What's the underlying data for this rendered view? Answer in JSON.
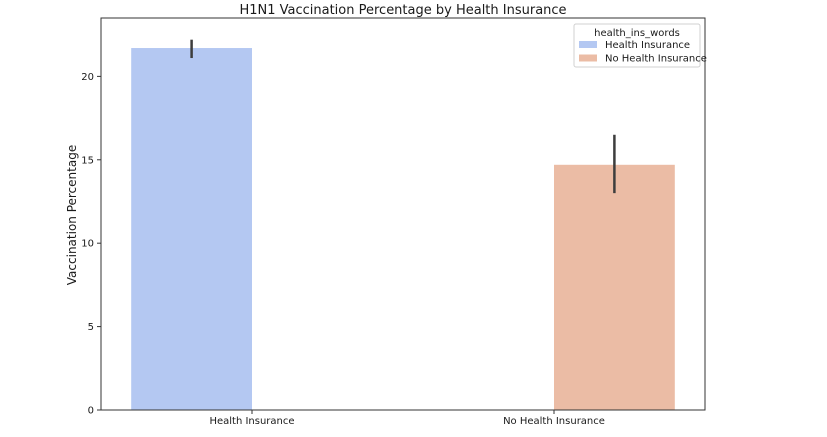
{
  "chart_data": {
    "type": "bar",
    "title": "H1N1 Vaccination Percentage by Health Insurance",
    "xlabel": "",
    "ylabel": "Vaccination Percentage",
    "categories": [
      "Health Insurance",
      "No Health Insurance"
    ],
    "ylim": [
      0,
      23.5
    ],
    "yticks": [
      0,
      5,
      10,
      15,
      20
    ],
    "legend": {
      "title": "health_ins_words",
      "placement": "top-right"
    },
    "series": [
      {
        "name": "Health Insurance",
        "color": "#b4c8f2",
        "values": [
          21.7,
          null
        ],
        "error_low": [
          21.1,
          null
        ],
        "error_high": [
          22.2,
          null
        ]
      },
      {
        "name": "No Health Insurance",
        "color": "#ebbca5",
        "values": [
          null,
          14.7
        ],
        "error_low": [
          null,
          13.0
        ],
        "error_high": [
          null,
          16.5
        ]
      }
    ],
    "grid": false
  }
}
